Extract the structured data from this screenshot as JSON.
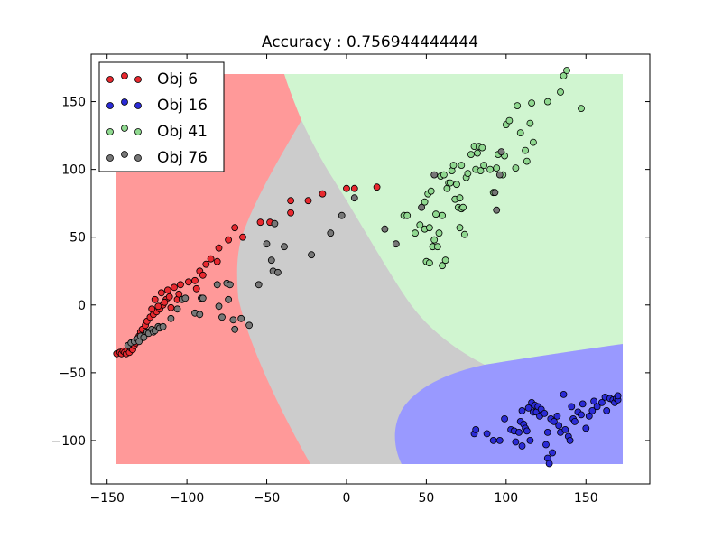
{
  "chart_data": {
    "type": "scatter",
    "title": "Accuracy : 0.756944444444",
    "xlabel": "",
    "ylabel": "",
    "xlim": [
      -160,
      190
    ],
    "ylim": [
      -132,
      185
    ],
    "xticks": [
      -150,
      -100,
      -50,
      0,
      50,
      100,
      150
    ],
    "yticks": [
      -100,
      -50,
      0,
      50,
      100,
      150
    ],
    "xtick_labels": [
      "−150",
      "−100",
      "−50",
      "0",
      "50",
      "100",
      "150"
    ],
    "ytick_labels": [
      "−100",
      "−50",
      "0",
      "50",
      "100",
      "150"
    ],
    "grid": false,
    "legend_position": "top-left",
    "regions": [
      {
        "name": "Obj 6",
        "color": "#ff9999"
      },
      {
        "name": "Obj 16",
        "color": "#9999ff"
      },
      {
        "name": "Obj 41",
        "color": "#d0f5d0"
      },
      {
        "name": "Obj 76",
        "color": "#cccccc"
      }
    ],
    "series": [
      {
        "name": "Obj 6",
        "color": "#e8292f",
        "points": [
          [
            -144,
            -36
          ],
          [
            -142,
            -35
          ],
          [
            -141,
            -36
          ],
          [
            -140,
            -34
          ],
          [
            -139,
            -35
          ],
          [
            -138,
            -36
          ],
          [
            -137,
            -33
          ],
          [
            -136,
            -35
          ],
          [
            -135,
            -32
          ],
          [
            -134,
            -33
          ],
          [
            -133,
            -30
          ],
          [
            -132,
            -28
          ],
          [
            -131,
            -26
          ],
          [
            -130,
            -23
          ],
          [
            -129,
            -20
          ],
          [
            -128,
            -18
          ],
          [
            -126,
            -15
          ],
          [
            -125,
            -12
          ],
          [
            -123,
            -9
          ],
          [
            -121,
            -7
          ],
          [
            -119,
            -5
          ],
          [
            -117,
            -3
          ],
          [
            -115,
            0
          ],
          [
            -113,
            4
          ],
          [
            -111,
            6
          ],
          [
            -118,
            -1
          ],
          [
            -114,
            2
          ],
          [
            -120,
            4
          ],
          [
            -116,
            9
          ],
          [
            -112,
            11
          ],
          [
            -108,
            13
          ],
          [
            -122,
            -3
          ],
          [
            -110,
            -2
          ],
          [
            -106,
            4
          ],
          [
            -105,
            8
          ],
          [
            -104,
            15
          ],
          [
            -99,
            17
          ],
          [
            -95,
            18
          ],
          [
            -94,
            12
          ],
          [
            -92,
            25
          ],
          [
            -90,
            22
          ],
          [
            -88,
            30
          ],
          [
            -85,
            34
          ],
          [
            -81,
            32
          ],
          [
            -80,
            42
          ],
          [
            -74,
            48
          ],
          [
            -70,
            57
          ],
          [
            -65,
            50
          ],
          [
            -54,
            61
          ],
          [
            -48,
            61
          ],
          [
            -35,
            77
          ],
          [
            -35,
            68
          ],
          [
            -24,
            77
          ],
          [
            -15,
            82
          ],
          [
            0,
            86
          ],
          [
            5,
            86
          ],
          [
            19,
            87
          ]
        ]
      },
      {
        "name": "Obj 16",
        "color": "#2b2bd6",
        "points": [
          [
            80,
            -95
          ],
          [
            81,
            -92
          ],
          [
            88,
            -95
          ],
          [
            92,
            -100
          ],
          [
            96,
            -100
          ],
          [
            99,
            -84
          ],
          [
            103,
            -92
          ],
          [
            105,
            -93
          ],
          [
            106,
            -101
          ],
          [
            108,
            -94
          ],
          [
            109,
            -86
          ],
          [
            110,
            -78
          ],
          [
            110,
            -104
          ],
          [
            111,
            -88
          ],
          [
            112,
            -91
          ],
          [
            113,
            -93
          ],
          [
            114,
            -76
          ],
          [
            115,
            -100
          ],
          [
            116,
            -72
          ],
          [
            117,
            -79
          ],
          [
            118,
            -74
          ],
          [
            119,
            -79
          ],
          [
            120,
            -75
          ],
          [
            121,
            -82
          ],
          [
            122,
            -77
          ],
          [
            124,
            -80
          ],
          [
            125,
            -103
          ],
          [
            126,
            -94
          ],
          [
            126,
            -113
          ],
          [
            127,
            -117
          ],
          [
            128,
            -84
          ],
          [
            129,
            -109
          ],
          [
            130,
            -86
          ],
          [
            132,
            -82
          ],
          [
            133,
            -89
          ],
          [
            134,
            -94
          ],
          [
            136,
            -66
          ],
          [
            137,
            -92
          ],
          [
            139,
            -97
          ],
          [
            140,
            -100
          ],
          [
            141,
            -75
          ],
          [
            142,
            -84
          ],
          [
            143,
            -86
          ],
          [
            145,
            -79
          ],
          [
            147,
            -81
          ],
          [
            148,
            -73
          ],
          [
            150,
            -91
          ],
          [
            152,
            -82
          ],
          [
            154,
            -78
          ],
          [
            155,
            -71
          ],
          [
            157,
            -75
          ],
          [
            160,
            -72
          ],
          [
            162,
            -68
          ],
          [
            163,
            -78
          ],
          [
            165,
            -69
          ],
          [
            167,
            -70
          ],
          [
            168,
            -72
          ],
          [
            169,
            -69
          ],
          [
            170,
            -70
          ],
          [
            170,
            -67
          ]
        ]
      },
      {
        "name": "Obj 41",
        "color": "#8fd88f",
        "points": [
          [
            36,
            66
          ],
          [
            38,
            66
          ],
          [
            43,
            53
          ],
          [
            46,
            59
          ],
          [
            49,
            56
          ],
          [
            49,
            76
          ],
          [
            50,
            32
          ],
          [
            51,
            82
          ],
          [
            52,
            31
          ],
          [
            52,
            57
          ],
          [
            53,
            84
          ],
          [
            54,
            43
          ],
          [
            55,
            48
          ],
          [
            56,
            67
          ],
          [
            57,
            43
          ],
          [
            58,
            53
          ],
          [
            59,
            95
          ],
          [
            60,
            29
          ],
          [
            60,
            66
          ],
          [
            61,
            96
          ],
          [
            62,
            33
          ],
          [
            63,
            86
          ],
          [
            64,
            90
          ],
          [
            65,
            90
          ],
          [
            66,
            99
          ],
          [
            67,
            103
          ],
          [
            68,
            78
          ],
          [
            69,
            89
          ],
          [
            70,
            72
          ],
          [
            71,
            79
          ],
          [
            71,
            57
          ],
          [
            72,
            103
          ],
          [
            72,
            71
          ],
          [
            73,
            72
          ],
          [
            74,
            52
          ],
          [
            75,
            94
          ],
          [
            76,
            97
          ],
          [
            78,
            111
          ],
          [
            80,
            117
          ],
          [
            81,
            100
          ],
          [
            82,
            112
          ],
          [
            83,
            117
          ],
          [
            84,
            99
          ],
          [
            85,
            116
          ],
          [
            86,
            103
          ],
          [
            90,
            100
          ],
          [
            92,
            83
          ],
          [
            94,
            101
          ],
          [
            95,
            111
          ],
          [
            98,
            96
          ],
          [
            99,
            110
          ],
          [
            100,
            133
          ],
          [
            102,
            136
          ],
          [
            106,
            101
          ],
          [
            107,
            147
          ],
          [
            109,
            127
          ],
          [
            112,
            114
          ],
          [
            113,
            106
          ],
          [
            115,
            134
          ],
          [
            116,
            149
          ],
          [
            117,
            120
          ],
          [
            126,
            150
          ],
          [
            134,
            157
          ],
          [
            136,
            169
          ],
          [
            138,
            173
          ],
          [
            147,
            145
          ]
        ]
      },
      {
        "name": "Obj 76",
        "color": "#777777",
        "points": [
          [
            -137,
            -30
          ],
          [
            -135,
            -28
          ],
          [
            -133,
            -27
          ],
          [
            -131,
            -25
          ],
          [
            -130,
            -27
          ],
          [
            -129,
            -23
          ],
          [
            -127,
            -24
          ],
          [
            -125,
            -20
          ],
          [
            -124,
            -21
          ],
          [
            -122,
            -18
          ],
          [
            -121,
            -20
          ],
          [
            -120,
            -19
          ],
          [
            -118,
            -16
          ],
          [
            -117,
            -17
          ],
          [
            -115,
            -16
          ],
          [
            -110,
            -10
          ],
          [
            -106,
            -3
          ],
          [
            -103,
            4
          ],
          [
            -101,
            5
          ],
          [
            -95,
            -6
          ],
          [
            -92,
            -7
          ],
          [
            -91,
            5
          ],
          [
            -90,
            5
          ],
          [
            -81,
            15
          ],
          [
            -80,
            -1
          ],
          [
            -78,
            -9
          ],
          [
            -75,
            16
          ],
          [
            -74,
            4
          ],
          [
            -73,
            15
          ],
          [
            -71,
            -11
          ],
          [
            -70,
            -18
          ],
          [
            -66,
            -10
          ],
          [
            -61,
            -15
          ],
          [
            -55,
            15
          ],
          [
            -50,
            45
          ],
          [
            -47,
            33
          ],
          [
            -46,
            25
          ],
          [
            -45,
            60
          ],
          [
            -43,
            24
          ],
          [
            -39,
            43
          ],
          [
            -22,
            37
          ],
          [
            -10,
            53
          ],
          [
            -3,
            66
          ],
          [
            5,
            79
          ],
          [
            24,
            56
          ],
          [
            31,
            45
          ],
          [
            47,
            72
          ],
          [
            55,
            96
          ],
          [
            93,
            83
          ],
          [
            94,
            70
          ],
          [
            96,
            96
          ],
          [
            97,
            113
          ]
        ]
      }
    ],
    "accuracy": 0.756944444444
  }
}
